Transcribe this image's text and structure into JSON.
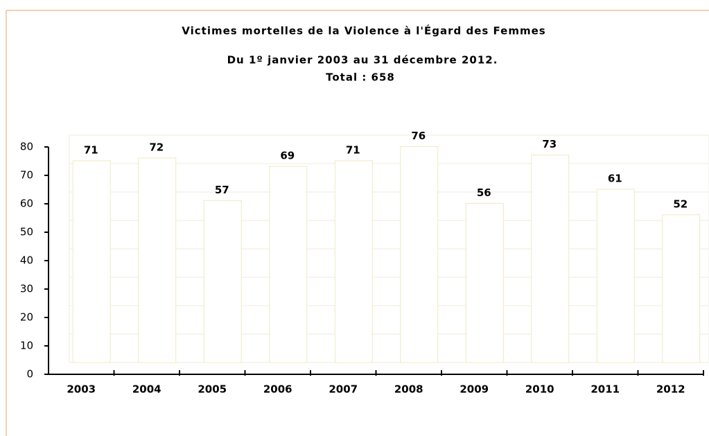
{
  "chart_data": {
    "type": "bar",
    "title": "Victimes mortelles de la Violence à l'Égard des Femmes",
    "subtitle": "Du 1º janvier 2003 au 31 décembre 2012.",
    "annotation": "Total : 658",
    "categories": [
      "2003",
      "2004",
      "2005",
      "2006",
      "2007",
      "2008",
      "2009",
      "2010",
      "2011",
      "2012"
    ],
    "values": [
      71,
      72,
      57,
      69,
      71,
      76,
      56,
      73,
      61,
      52
    ],
    "color": "#ffffff",
    "ylim": [
      0,
      80
    ],
    "yticks": [
      0,
      10,
      20,
      30,
      40,
      50,
      60,
      70,
      80
    ],
    "grid": true
  }
}
